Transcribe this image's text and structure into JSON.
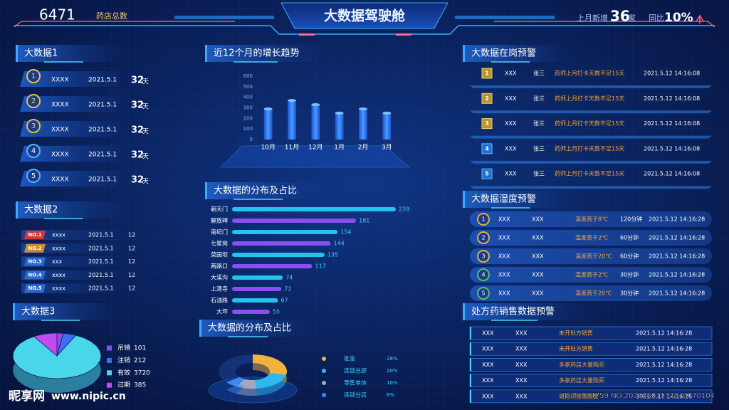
{
  "header": {
    "store_count": "6471",
    "store_label": "药店总数",
    "title": "大数据驾驶舱",
    "new_label": "上月新增",
    "new_value": "36",
    "new_unit": "家",
    "yoy_label": "同比",
    "yoy_value": "10%"
  },
  "panel1": {
    "title": "大数据1",
    "rows": [
      {
        "rank": "1",
        "name": "XXXX",
        "date": "2021.5.1",
        "days": "32",
        "unit": "天"
      },
      {
        "rank": "2",
        "name": "XXXX",
        "date": "2021.5.1",
        "days": "32",
        "unit": "天"
      },
      {
        "rank": "3",
        "name": "XXXX",
        "date": "2021.5.1",
        "days": "32",
        "unit": "天"
      },
      {
        "rank": "4",
        "name": "XXXX",
        "date": "2021.5.1",
        "days": "32",
        "unit": "天"
      },
      {
        "rank": "5",
        "name": "XXXX",
        "date": "2021.5.1",
        "days": "32",
        "unit": "天"
      }
    ]
  },
  "panel2": {
    "title": "大数据2",
    "rows": [
      {
        "no": "NO.1",
        "name": "xxxx",
        "date": "2021.5.1",
        "count": "12"
      },
      {
        "no": "NO.2",
        "name": "xxxx",
        "date": "2021.5.1",
        "count": "12"
      },
      {
        "no": "NO.3",
        "name": "xxx",
        "date": "2021.5.1",
        "count": "12"
      },
      {
        "no": "NO.4",
        "name": "xxxx",
        "date": "2021.5.1",
        "count": "12"
      },
      {
        "no": "NO.5",
        "name": "xxxx",
        "date": "2021.5.1",
        "count": "12"
      }
    ]
  },
  "chart_data": [
    {
      "type": "bar",
      "title": "近12个月的增长趋势",
      "categories": [
        "10月",
        "11月",
        "12月",
        "1月",
        "2月",
        "3月"
      ],
      "values": [
        290,
        370,
        330,
        250,
        290,
        250
      ],
      "color": "#2f7cf0",
      "ylim": [
        0,
        600
      ],
      "yticks": [
        0,
        100,
        200,
        300,
        400,
        500,
        600
      ]
    },
    {
      "type": "hbar",
      "title": "大数据的分布及占比",
      "categories": [
        "朝天门",
        "解放碑",
        "南纪门",
        "七星岗",
        "菜园坝",
        "两路口",
        "大溪沟",
        "上清寺",
        "石油路",
        "大坪"
      ],
      "values": [
        239,
        181,
        154,
        144,
        135,
        117,
        74,
        72,
        67,
        55
      ],
      "colors": [
        "#22c4ee",
        "#8b4ff0"
      ]
    },
    {
      "type": "pie3d",
      "title": "大数据3",
      "categories": [
        "吊销",
        "注销",
        "有效",
        "过期"
      ],
      "values": [
        101,
        212,
        3720,
        385
      ],
      "colors": [
        "#8a4cf0",
        "#3f6cf5",
        "#49d6e8",
        "#c04cf0"
      ]
    },
    {
      "type": "donut",
      "title": "大数据的分布及占比",
      "categories": [
        "批发",
        "连锁总部",
        "零售单体",
        "连锁分店"
      ],
      "values": [
        28,
        20,
        10,
        6
      ],
      "value_labels": [
        "28%",
        "20%",
        "10%",
        "6%"
      ],
      "colors": [
        "#f0b43c",
        "#2fb8f0",
        "#a0a8c0",
        "#3a8af0"
      ]
    }
  ],
  "panel_duty": {
    "title": "大数据在岗预警",
    "rows": [
      {
        "rank": "1",
        "id": "XXX",
        "person": "张三",
        "warning": "药师上月打卡天数不足15天",
        "time": "2021.5.12 14:16:08"
      },
      {
        "rank": "2",
        "id": "XXX",
        "person": "张三",
        "warning": "药师上月打卡天数不足15天",
        "time": "2021.5.12 14:16:08"
      },
      {
        "rank": "3",
        "id": "XXX",
        "person": "张三",
        "warning": "药师上月打卡天数不足15天",
        "time": "2021.5.12 14:16:08"
      },
      {
        "rank": "4",
        "id": "XXX",
        "person": "张三",
        "warning": "药师上月打卡天数不足15天",
        "time": "2021.5.12 14:16:08"
      },
      {
        "rank": "5",
        "id": "XXX",
        "person": "张三",
        "warning": "药师上月打卡天数不足15天",
        "time": "2021.5.12 14:16:08"
      }
    ]
  },
  "panel_humidity": {
    "title": "大数据湿度预警",
    "rows": [
      {
        "rank": "1",
        "a": "XXX",
        "b": "XXX",
        "warning": "温度高于8℃",
        "duration": "120分钟",
        "time": "2021.5.12 14:16:28"
      },
      {
        "rank": "2",
        "a": "XXX",
        "b": "XXX",
        "warning": "温度高于2℃",
        "duration": "60分钟",
        "time": "2021.5.12 14:16:28"
      },
      {
        "rank": "3",
        "a": "XXX",
        "b": "XXX",
        "warning": "温度高于20℃",
        "duration": "60分钟",
        "time": "2021.5.12 14:16:28"
      },
      {
        "rank": "4",
        "a": "XXX",
        "b": "XXX",
        "warning": "温度高于2℃",
        "duration": "30分钟",
        "time": "2021.5.12 14:16:28"
      },
      {
        "rank": "5",
        "a": "XXX",
        "b": "XXX",
        "warning": "温度高于20℃",
        "duration": "30分钟",
        "time": "2021.5.12 14:16:28"
      }
    ]
  },
  "panel_rx": {
    "title": "处方药销售数据预警",
    "rows": [
      {
        "a": "XXX",
        "b": "XXX",
        "warning": "未开处方销售",
        "time": "2021.5.12 14:16:28"
      },
      {
        "a": "XXX",
        "b": "XXX",
        "warning": "未开处方销售",
        "time": "2021.5.12 14:16:28"
      },
      {
        "a": "XXX",
        "b": "XXX",
        "warning": "多家药店大量购买",
        "time": "2021.5.12 14:16:28"
      },
      {
        "a": "XXX",
        "b": "XXX",
        "warning": "多家药店大量购买",
        "time": "2021.5.12 14:16:28"
      },
      {
        "a": "XXX",
        "b": "XXX",
        "warning": "处方药销售预警",
        "time": "2021.5.12 14:16:28"
      }
    ]
  },
  "watermark": {
    "brand": "昵享网",
    "url": "www.nipic.cn",
    "id": "ID:34104759 NO:20220807133846070104"
  }
}
